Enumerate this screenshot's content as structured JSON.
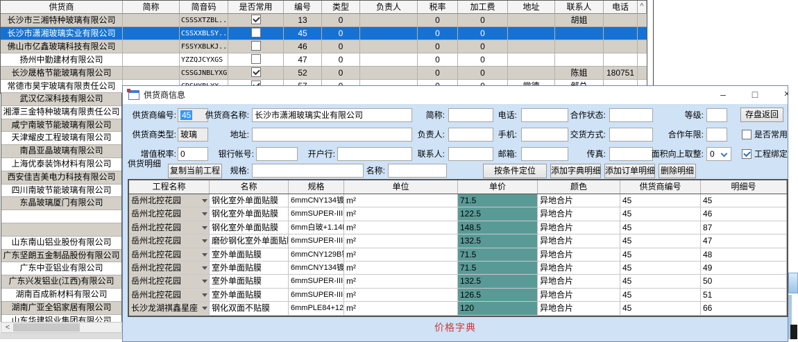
{
  "background": {
    "grid": {
      "headers": [
        "供货商",
        "简称",
        "简音码",
        "是否常用",
        "编号",
        "类型",
        "负责人",
        "税率",
        "加工费",
        "地址",
        "联系人",
        "电话"
      ],
      "scroll_up_glyph": "^",
      "rows": [
        {
          "supplier": "长沙市三湘特种玻璃有限公司",
          "abbr": "",
          "code": "CSSSXTZBL..",
          "common": true,
          "no": "13",
          "type": "0",
          "manager": "",
          "tax": "0",
          "fee": "0",
          "addr": "",
          "contact": "胡姐",
          "phone": "",
          "selected": false
        },
        {
          "supplier": "长沙市潇湘玻璃实业有限公司",
          "abbr": "",
          "code": "CSSXXBLSY..",
          "common": false,
          "no": "45",
          "type": "0",
          "manager": "",
          "tax": "0",
          "fee": "0",
          "addr": "",
          "contact": "",
          "phone": "",
          "selected": true
        },
        {
          "supplier": "佛山市亿鑫玻璃科技有限公司",
          "abbr": "",
          "code": "FSSYXBLKJ..",
          "common": false,
          "no": "46",
          "type": "0",
          "manager": "",
          "tax": "0",
          "fee": "0",
          "addr": "",
          "contact": "",
          "phone": "",
          "selected": false
        },
        {
          "supplier": "扬州中勤建材有限公司",
          "abbr": "",
          "code": "YZZQJCYXGS",
          "common": false,
          "no": "47",
          "type": "0",
          "manager": "",
          "tax": "0",
          "fee": "0",
          "addr": "",
          "contact": "",
          "phone": "",
          "selected": false
        },
        {
          "supplier": "长沙晟格节能玻璃有限公司",
          "abbr": "",
          "code": "CSSGJNBLYXGS",
          "common": true,
          "no": "52",
          "type": "0",
          "manager": "",
          "tax": "0",
          "fee": "0",
          "addr": "",
          "contact": "陈姐",
          "phone": "180751",
          "selected": false
        },
        {
          "supplier": "常德市昊宇玻璃有限责任公司",
          "abbr": "",
          "code": "CDSHYBLYX",
          "common": true,
          "no": "57",
          "type": "0",
          "manager": "",
          "tax": "0",
          "fee": "0",
          "addr": "常德",
          "contact": "邹总",
          "phone": "",
          "selected": false
        }
      ]
    },
    "supplier_list": [
      "武汉亿深科技有限公司",
      "湘潭三金特种玻璃有限责任公司",
      "咸宁南玻节能玻璃有限公司",
      "天津耀皮工程玻璃有限公司",
      "南昌亚晶玻璃有限公司",
      "上海优泰装饰材料有限公司",
      "西安佳吉美电力科技有限公司",
      "四川南玻节能玻璃有限公司",
      "东晶玻璃厦门有限公司",
      "",
      "",
      "山东南山铝业股份有限公司",
      "广东坚朗五金制品股份有限公司",
      "广东中亚铝业有限公司",
      "广东兴发铝业(江西)有限公司",
      "湖南百成新材料有限公司",
      "湖南广亚全铝家居有限公司",
      "山东华建铝业集团有限公司"
    ],
    "hscroll_left_glyph": "<"
  },
  "dialog": {
    "title": "供货商信息",
    "window_buttons": {
      "minimize": "–",
      "maximize": "□",
      "close": "×"
    },
    "form": {
      "supplier_no": {
        "label": "供货商编号:",
        "value": "45"
      },
      "supplier_name": {
        "label": "供货商名称:",
        "value": "长沙市潇湘玻璃实业有限公司"
      },
      "abbr": {
        "label": "简称:",
        "value": ""
      },
      "phone": {
        "label": "电话:",
        "value": ""
      },
      "coop_status": {
        "label": "合作状态:",
        "value": ""
      },
      "grade": {
        "label": "等级:",
        "value": ""
      },
      "save_button": "存盘返回",
      "supplier_type": {
        "label": "供货商类型:",
        "value": "玻璃"
      },
      "address": {
        "label": "地址:",
        "value": ""
      },
      "manager": {
        "label": "负责人:",
        "value": ""
      },
      "mobile": {
        "label": "手机:",
        "value": ""
      },
      "delivery_mode": {
        "label": "交货方式:",
        "value": ""
      },
      "coop_years": {
        "label": "合作年限:",
        "value": ""
      },
      "common_checkbox": {
        "label": "是否常用",
        "checked": false
      },
      "vat_rate": {
        "label": "增值税率:",
        "value": "0"
      },
      "bank_account": {
        "label": "银行帐号:",
        "value": ""
      },
      "bank_branch": {
        "label": "开户行:",
        "value": ""
      },
      "contact": {
        "label": "联系人:",
        "value": ""
      },
      "email": {
        "label": "邮箱:",
        "value": ""
      },
      "fax": {
        "label": "传真:",
        "value": ""
      },
      "area_round_up": {
        "label": "面积向上取整:",
        "value": "0"
      },
      "project_bind_checkbox": {
        "label": "工程绑定",
        "checked": true
      }
    },
    "detail": {
      "section_label": "供货明细",
      "copy_button": "复制当前工程",
      "spec_filter": {
        "label": "规格:",
        "value": ""
      },
      "name_filter": {
        "label": "名称:",
        "value": ""
      },
      "locate_button": "按条件定位",
      "add_dict_button": "添加字典明细",
      "add_order_button": "添加订单明细",
      "delete_button": "删除明细",
      "grid": {
        "headers": [
          "工程名称",
          "名称",
          "规格",
          "单位",
          "单价",
          "颜色",
          "供货商编号",
          "明细号"
        ],
        "rows": [
          [
            "岳州北控花园",
            "钢化室外单面贴膜",
            "6mmCNY134镀膜钢化",
            "m²",
            "71.5",
            "异地合片",
            "45",
            "45"
          ],
          [
            "岳州北控花园",
            "钢化室外单面贴膜",
            "6mmSUPER-III+12A(硅...",
            "m²",
            "122.5",
            "异地合片",
            "45",
            "46"
          ],
          [
            "岳州北控花园",
            "钢化室外单面贴膜",
            "6mm白玻+1.14PVB+6mm...",
            "m²",
            "148.5",
            "异地合片",
            "45",
            "87"
          ],
          [
            "岳州北控花园",
            "磨砂钢化室外单面贴膜",
            "6mmSUPER-III+12A(硅...",
            "m²",
            "132.5",
            "异地合片",
            "45",
            "47"
          ],
          [
            "岳州北控花园",
            "室外单面贴膜",
            "6mmCNY129B镀膜钢化",
            "m²",
            "71.5",
            "异地合片",
            "45",
            "48"
          ],
          [
            "岳州北控花园",
            "室外单面贴膜",
            "6mmCNY134镀膜钢化",
            "m²",
            "71.5",
            "异地合片",
            "45",
            "49"
          ],
          [
            "岳州北控花园",
            "室外单面贴膜",
            "6mmSUPER-III+12A(硅...",
            "m²",
            "132.5",
            "异地合片",
            "45",
            "50"
          ],
          [
            "岳州北控花园",
            "室外单面贴膜",
            "6mmSUPER-III+12A(硅...",
            "m²",
            "126.5",
            "异地合片",
            "45",
            "51"
          ],
          [
            "长沙龙湖祺鑫星座",
            "钢化双面不贴膜",
            "6mmPLE84+12A(硅酮胶...",
            "m²",
            "120",
            "异地合片",
            "45",
            "66"
          ]
        ]
      },
      "footer_label": "价格字典"
    }
  },
  "colors": {
    "selection_blue": "#1472d6",
    "price_column_teal": "#5a9a96",
    "footer_red": "#cc3a3a",
    "form_background": "#cfe2f6",
    "alt_row_gray": "#d4d0c8"
  }
}
